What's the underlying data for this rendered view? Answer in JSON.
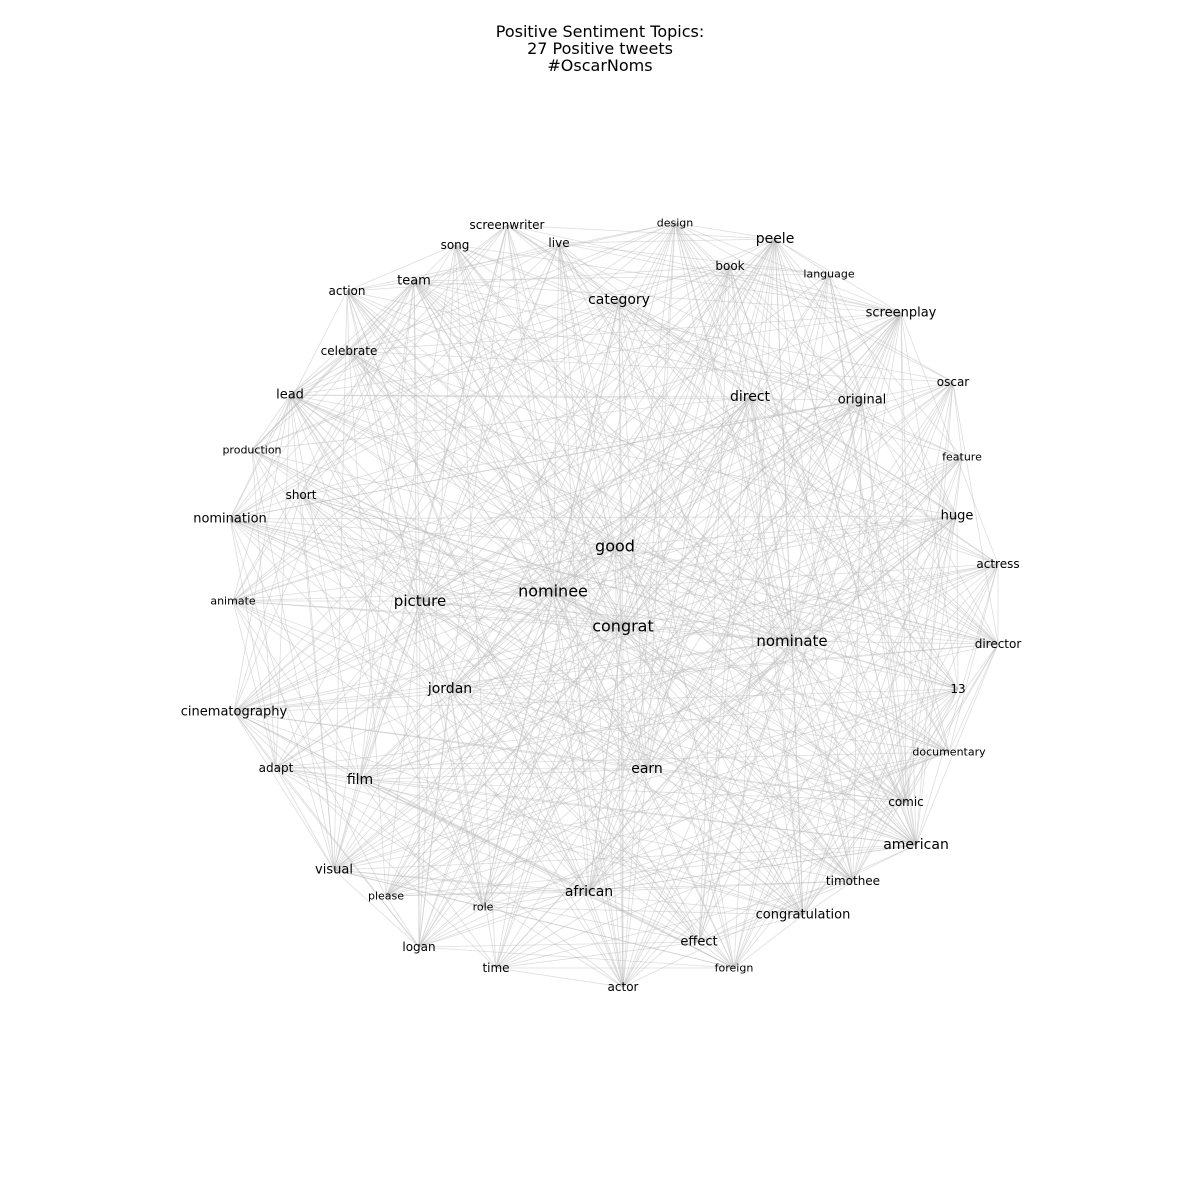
{
  "title": {
    "line1": "Positive Sentiment Topics:",
    "line2": "27 Positive tweets",
    "line3": "#OscarNoms"
  },
  "colors": {
    "edge": "#bdbdbd",
    "label": "#000000",
    "background": "#ffffff"
  },
  "nodes": [
    {
      "id": "good",
      "label": "good",
      "weight": 5
    },
    {
      "id": "congrat",
      "label": "congrat",
      "weight": 5
    },
    {
      "id": "nominee",
      "label": "nominee",
      "weight": 5
    },
    {
      "id": "picture",
      "label": "picture",
      "weight": 4
    },
    {
      "id": "nominate",
      "label": "nominate",
      "weight": 4
    },
    {
      "id": "jordan",
      "label": "jordan",
      "weight": 3
    },
    {
      "id": "film",
      "label": "film",
      "weight": 3
    },
    {
      "id": "earn",
      "label": "earn",
      "weight": 3
    },
    {
      "id": "african",
      "label": "african",
      "weight": 3
    },
    {
      "id": "american",
      "label": "american",
      "weight": 3
    },
    {
      "id": "category",
      "label": "category",
      "weight": 3
    },
    {
      "id": "peele",
      "label": "peele",
      "weight": 3
    },
    {
      "id": "direct",
      "label": "direct",
      "weight": 3
    },
    {
      "id": "original",
      "label": "original",
      "weight": 2
    },
    {
      "id": "screenplay",
      "label": "screenplay",
      "weight": 2
    },
    {
      "id": "lead",
      "label": "lead",
      "weight": 2
    },
    {
      "id": "team",
      "label": "team",
      "weight": 2
    },
    {
      "id": "nomination",
      "label": "nomination",
      "weight": 2
    },
    {
      "id": "cinematography",
      "label": "cinematography",
      "weight": 2
    },
    {
      "id": "visual",
      "label": "visual",
      "weight": 2
    },
    {
      "id": "effect",
      "label": "effect",
      "weight": 2
    },
    {
      "id": "congratulation",
      "label": "congratulation",
      "weight": 2
    },
    {
      "id": "huge",
      "label": "huge",
      "weight": 2
    },
    {
      "id": "screenwriter",
      "label": "screenwriter",
      "weight": 1
    },
    {
      "id": "song",
      "label": "song",
      "weight": 1
    },
    {
      "id": "live",
      "label": "live",
      "weight": 1
    },
    {
      "id": "design",
      "label": "design",
      "weight": 0
    },
    {
      "id": "book",
      "label": "book",
      "weight": 1
    },
    {
      "id": "language",
      "label": "language",
      "weight": 0
    },
    {
      "id": "action",
      "label": "action",
      "weight": 1
    },
    {
      "id": "celebrate",
      "label": "celebrate",
      "weight": 1
    },
    {
      "id": "oscar",
      "label": "oscar",
      "weight": 1
    },
    {
      "id": "production",
      "label": "production",
      "weight": 0
    },
    {
      "id": "feature",
      "label": "feature",
      "weight": 0
    },
    {
      "id": "short",
      "label": "short",
      "weight": 1
    },
    {
      "id": "actress",
      "label": "actress",
      "weight": 1
    },
    {
      "id": "animate",
      "label": "animate",
      "weight": 0
    },
    {
      "id": "director",
      "label": "director",
      "weight": 1
    },
    {
      "id": "13",
      "label": "13",
      "weight": 1
    },
    {
      "id": "documentary",
      "label": "documentary",
      "weight": 0
    },
    {
      "id": "adapt",
      "label": "adapt",
      "weight": 1
    },
    {
      "id": "comic",
      "label": "comic",
      "weight": 1
    },
    {
      "id": "timothee",
      "label": "timothee",
      "weight": 1
    },
    {
      "id": "please",
      "label": "please",
      "weight": 0
    },
    {
      "id": "role",
      "label": "role",
      "weight": 0
    },
    {
      "id": "logan",
      "label": "logan",
      "weight": 1
    },
    {
      "id": "time",
      "label": "time",
      "weight": 1
    },
    {
      "id": "actor",
      "label": "actor",
      "weight": 1
    },
    {
      "id": "foreign",
      "label": "foreign",
      "weight": 0
    }
  ]
}
